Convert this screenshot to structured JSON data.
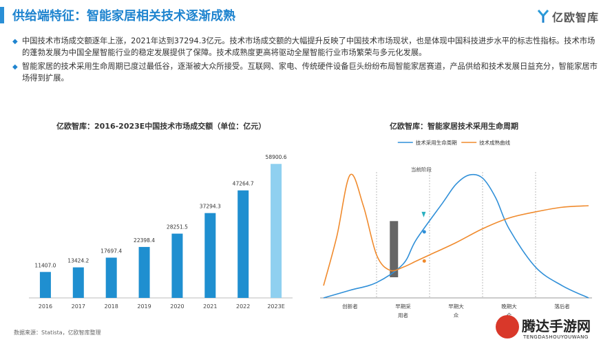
{
  "header": {
    "title": "供给端特征：智能家居相关技术逐渐成熟",
    "logo_text": "亿欧智库",
    "accent_color": "#1f84cf"
  },
  "bullets": [
    {
      "icon": "diamond-icon",
      "text": "中国技术市场成交额逐年上涨，2021年达到37294.3亿元。技术市场成交额的大幅提升反映了中国技术市场现状，也是体现中国科技进步水平的标志性指标。技术市场的蓬勃发展为中国全屋智能行业的稳定发展提供了保障。技术成熟度更高将驱动全屋智能行业市场繁荣与多元化发展。"
    },
    {
      "icon": "diamond-icon",
      "text": "智能家居的技术采用生命周期已度过最低谷，逐渐被大众所接受。互联网、家电、传统硬件设备巨头纷纷布局智能家居赛道，产品供给和技术发展日益充分，智能家居市场得到扩展。"
    }
  ],
  "chart_data": [
    {
      "type": "bar",
      "title": "亿欧智库：2016-2023E中国技术市场成交额（单位：亿元）",
      "categories": [
        "2016",
        "2017",
        "2018",
        "2019",
        "2020",
        "2021",
        "2022",
        "2023E"
      ],
      "values": [
        11407.0,
        13424.2,
        17697.4,
        22398.4,
        28251.5,
        37294.3,
        47264.7,
        58900.6
      ],
      "value_labels": [
        "11407.0",
        "13424.2",
        "17697.4",
        "22398.4",
        "28251.5",
        "37294.3",
        "47264.7",
        "58900.6"
      ],
      "colors": {
        "actual": "#1f8fd0",
        "estimate": "#8fd0f0"
      },
      "ylim": [
        0,
        62000
      ]
    },
    {
      "type": "line",
      "title": "亿欧智库：智能家居技术采用生命周期",
      "series": [
        {
          "name": "技术采用生命周期",
          "color": "#2f8fd8",
          "x": [
            0,
            10,
            20,
            30,
            35,
            45,
            50,
            55,
            60,
            65,
            70,
            80,
            90,
            100
          ],
          "y": [
            0,
            5,
            10,
            22,
            38,
            62,
            74,
            80,
            78,
            65,
            45,
            20,
            8,
            0
          ]
        },
        {
          "name": "技术成熟曲线",
          "color": "#f08a2c",
          "x": [
            0,
            5,
            10,
            15,
            20,
            25,
            30,
            35,
            40,
            50,
            60,
            70,
            80,
            90,
            100
          ],
          "y": [
            8,
            40,
            80,
            60,
            28,
            18,
            20,
            24,
            28,
            36,
            45,
            52,
            56,
            59,
            60
          ]
        }
      ],
      "x_categories": [
        "创新者",
        "早期采\n用者",
        "早期大\n众",
        "晚期大\n众",
        "落后者"
      ],
      "annotation": "当前阶段",
      "ylim": [
        0,
        90
      ]
    }
  ],
  "source": "数据来源：Statista，亿欧智库整理",
  "watermark": {
    "main": "腾达手游网",
    "sub": "TENGDASHOUYOUWANG"
  }
}
